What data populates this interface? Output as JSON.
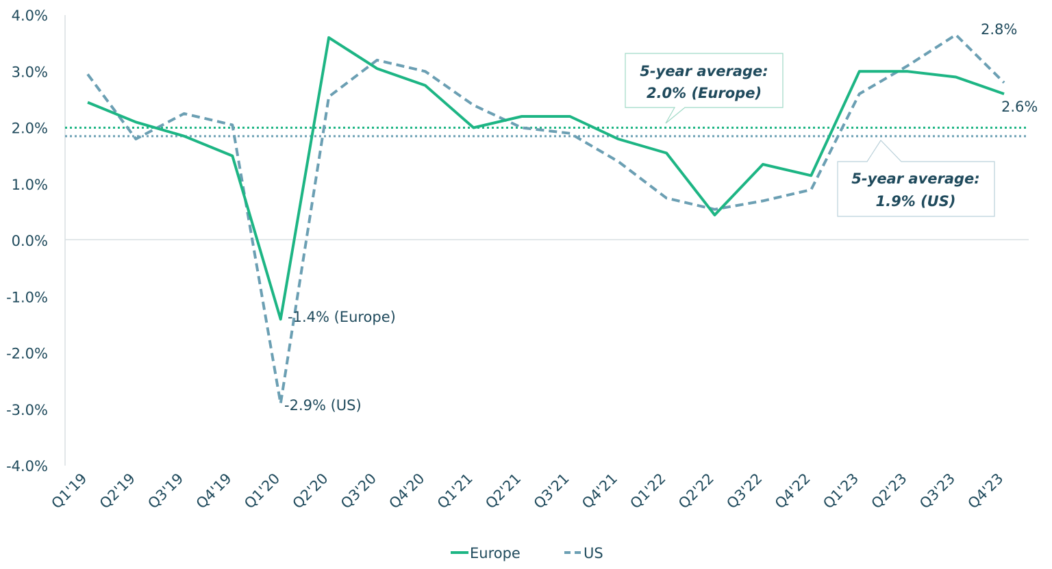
{
  "chart_data": {
    "type": "line",
    "categories": [
      "Q1'19",
      "Q2'19",
      "Q3'19",
      "Q4'19",
      "Q1'20",
      "Q2'20",
      "Q3'20",
      "Q4'20",
      "Q1'21",
      "Q2'21",
      "Q3'21",
      "Q4'21",
      "Q1'22",
      "Q2'22",
      "Q3'22",
      "Q4'22",
      "Q1'23",
      "Q2'23",
      "Q3'23",
      "Q4'23"
    ],
    "series": [
      {
        "name": "Europe",
        "color": "#1db584",
        "style": "solid",
        "values": [
          2.45,
          2.1,
          1.85,
          1.5,
          -1.4,
          3.6,
          3.05,
          2.75,
          2.0,
          2.2,
          2.2,
          1.8,
          1.55,
          0.45,
          1.35,
          1.15,
          3.0,
          3.0,
          2.9,
          2.6
        ]
      },
      {
        "name": "US",
        "color": "#6b9fb3",
        "style": "dashed",
        "values": [
          2.95,
          1.8,
          2.25,
          2.05,
          -2.9,
          2.55,
          3.2,
          3.0,
          2.4,
          2.0,
          1.9,
          1.4,
          0.75,
          0.55,
          0.7,
          0.9,
          2.6,
          3.1,
          3.65,
          2.8
        ]
      }
    ],
    "reference_lines": [
      {
        "series": "Europe",
        "value": 2.0,
        "color": "#1db584",
        "style": "dotted"
      },
      {
        "series": "US",
        "value": 1.85,
        "color": "#6b9fb3",
        "style": "dotted"
      }
    ],
    "ylim": [
      -4.0,
      4.0
    ],
    "yticks": [
      "4.0%",
      "3.0%",
      "2.0%",
      "1.0%",
      "0.0%",
      "-1.0%",
      "-2.0%",
      "-3.0%",
      "-4.0%"
    ],
    "ytick_values": [
      4,
      3,
      2,
      1,
      0,
      -1,
      -2,
      -3,
      -4
    ],
    "title": "",
    "xlabel": "",
    "ylabel": "",
    "grid": false,
    "legend": {
      "position": "bottom-center",
      "items": [
        "Europe",
        "US"
      ]
    },
    "annotations": {
      "europe_low": "-1.4% (Europe)",
      "us_low": "-2.9% (US)",
      "us_end": "2.8%",
      "europe_end": "2.6%",
      "europe_avg_line1": "5-year average:",
      "europe_avg_line2": "2.0% (Europe)",
      "us_avg_line1": "5-year average:",
      "us_avg_line2": "1.9% (US)"
    }
  }
}
